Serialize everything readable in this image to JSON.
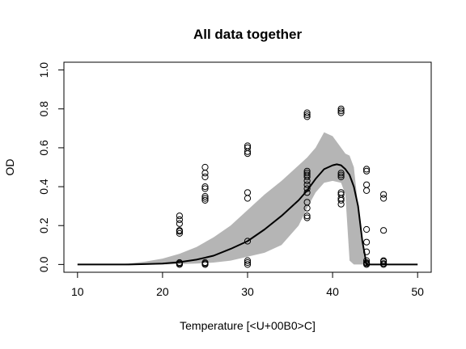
{
  "chart_data": {
    "type": "scatter",
    "title": "All data together",
    "xlabel": "Temperature [<U+00B0>C]",
    "ylabel": "OD",
    "xlim": [
      8.4,
      51.6
    ],
    "ylim": [
      -0.04,
      1.04
    ],
    "x_ticks": [
      10,
      20,
      30,
      40,
      50
    ],
    "y_ticks": [
      0.0,
      0.2,
      0.4,
      0.6,
      0.8,
      1.0
    ],
    "grid": false,
    "points": [
      {
        "x": 22,
        "y": 0.0
      },
      {
        "x": 22,
        "y": 0.005
      },
      {
        "x": 22,
        "y": 0.01
      },
      {
        "x": 22,
        "y": 0.16
      },
      {
        "x": 22,
        "y": 0.17
      },
      {
        "x": 22,
        "y": 0.175
      },
      {
        "x": 22,
        "y": 0.21
      },
      {
        "x": 22,
        "y": 0.23
      },
      {
        "x": 22,
        "y": 0.25
      },
      {
        "x": 25,
        "y": 0.0
      },
      {
        "x": 25,
        "y": 0.005
      },
      {
        "x": 25,
        "y": 0.01
      },
      {
        "x": 25,
        "y": 0.33
      },
      {
        "x": 25,
        "y": 0.34
      },
      {
        "x": 25,
        "y": 0.35
      },
      {
        "x": 25,
        "y": 0.39
      },
      {
        "x": 25,
        "y": 0.4
      },
      {
        "x": 25,
        "y": 0.45
      },
      {
        "x": 25,
        "y": 0.47
      },
      {
        "x": 25,
        "y": 0.5
      },
      {
        "x": 30,
        "y": 0.0
      },
      {
        "x": 30,
        "y": 0.01
      },
      {
        "x": 30,
        "y": 0.02
      },
      {
        "x": 30,
        "y": 0.12
      },
      {
        "x": 30,
        "y": 0.34
      },
      {
        "x": 30,
        "y": 0.37
      },
      {
        "x": 30,
        "y": 0.57
      },
      {
        "x": 30,
        "y": 0.58
      },
      {
        "x": 30,
        "y": 0.6
      },
      {
        "x": 30,
        "y": 0.61
      },
      {
        "x": 37,
        "y": 0.24
      },
      {
        "x": 37,
        "y": 0.25
      },
      {
        "x": 37,
        "y": 0.29
      },
      {
        "x": 37,
        "y": 0.32
      },
      {
        "x": 37,
        "y": 0.37
      },
      {
        "x": 37,
        "y": 0.39
      },
      {
        "x": 37,
        "y": 0.41
      },
      {
        "x": 37,
        "y": 0.43
      },
      {
        "x": 37,
        "y": 0.45
      },
      {
        "x": 37,
        "y": 0.46
      },
      {
        "x": 37,
        "y": 0.47
      },
      {
        "x": 37,
        "y": 0.48
      },
      {
        "x": 37,
        "y": 0.76
      },
      {
        "x": 37,
        "y": 0.77
      },
      {
        "x": 37,
        "y": 0.78
      },
      {
        "x": 41,
        "y": 0.31
      },
      {
        "x": 41,
        "y": 0.33
      },
      {
        "x": 41,
        "y": 0.34
      },
      {
        "x": 41,
        "y": 0.36
      },
      {
        "x": 41,
        "y": 0.37
      },
      {
        "x": 41,
        "y": 0.45
      },
      {
        "x": 41,
        "y": 0.46
      },
      {
        "x": 41,
        "y": 0.47
      },
      {
        "x": 41,
        "y": 0.78
      },
      {
        "x": 41,
        "y": 0.79
      },
      {
        "x": 41,
        "y": 0.8
      },
      {
        "x": 44,
        "y": 0.0
      },
      {
        "x": 44,
        "y": 0.005
      },
      {
        "x": 44,
        "y": 0.01
      },
      {
        "x": 44,
        "y": 0.02
      },
      {
        "x": 44,
        "y": 0.065
      },
      {
        "x": 44,
        "y": 0.115
      },
      {
        "x": 44,
        "y": 0.18
      },
      {
        "x": 44,
        "y": 0.38
      },
      {
        "x": 44,
        "y": 0.41
      },
      {
        "x": 44,
        "y": 0.48
      },
      {
        "x": 44,
        "y": 0.49
      },
      {
        "x": 46,
        "y": 0.0
      },
      {
        "x": 46,
        "y": 0.005
      },
      {
        "x": 46,
        "y": 0.015
      },
      {
        "x": 46,
        "y": 0.02
      },
      {
        "x": 46,
        "y": 0.175
      },
      {
        "x": 46,
        "y": 0.34
      },
      {
        "x": 46,
        "y": 0.36
      }
    ],
    "fit_curve": {
      "x": [
        10,
        14,
        16,
        18,
        20,
        22,
        24,
        26,
        28,
        30,
        32,
        34,
        36,
        37,
        38,
        39,
        40,
        40.5,
        41,
        41.5,
        42,
        42.5,
        43,
        43.5,
        44,
        46,
        50
      ],
      "y": [
        0.0,
        0.0,
        0.0,
        0.002,
        0.005,
        0.012,
        0.025,
        0.045,
        0.08,
        0.12,
        0.18,
        0.25,
        0.33,
        0.38,
        0.44,
        0.49,
        0.51,
        0.515,
        0.51,
        0.49,
        0.46,
        0.4,
        0.3,
        0.12,
        0.0,
        0.0,
        0.0
      ],
      "color": "#000000"
    },
    "confidence_band": {
      "x": [
        14,
        16,
        18,
        20,
        22,
        24,
        26,
        28,
        30,
        32,
        34,
        36,
        37,
        38,
        39,
        40,
        41,
        41.5,
        42,
        42.5,
        43,
        43.5,
        44,
        46
      ],
      "upper": [
        0.0,
        0.005,
        0.015,
        0.03,
        0.055,
        0.09,
        0.14,
        0.2,
        0.28,
        0.36,
        0.43,
        0.51,
        0.55,
        0.6,
        0.68,
        0.66,
        0.6,
        0.57,
        0.56,
        0.5,
        0.3,
        0.1,
        0.0,
        0.0
      ],
      "lower": [
        0.0,
        0.0,
        0.0,
        0.0,
        0.002,
        0.005,
        0.01,
        0.02,
        0.04,
        0.06,
        0.1,
        0.2,
        0.29,
        0.37,
        0.42,
        0.43,
        0.42,
        0.36,
        0.02,
        0.0,
        0.0,
        0.0,
        0.0,
        0.0
      ],
      "color": "#b5b5b5"
    }
  }
}
